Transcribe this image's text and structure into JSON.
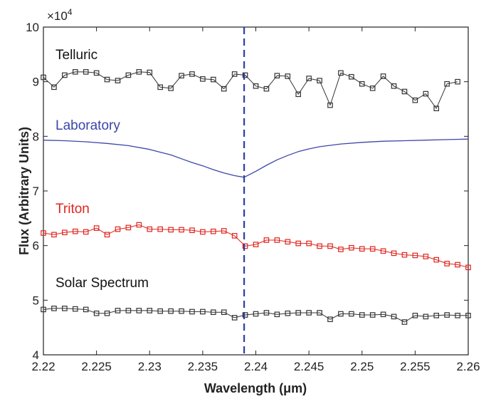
{
  "chart_data": {
    "type": "line",
    "xlabel": "Wavelength (μm)",
    "ylabel": "Flux (Arbitrary Units)",
    "y_multiplier_label": "×10",
    "y_multiplier_exponent": "4",
    "xlim": [
      2.22,
      2.26
    ],
    "ylim": [
      4,
      10
    ],
    "x_ticks": [
      "2.22",
      "2.225",
      "2.23",
      "2.235",
      "2.24",
      "2.245",
      "2.25",
      "2.255",
      "2.26"
    ],
    "y_ticks": [
      "4",
      "5",
      "6",
      "7",
      "8",
      "9",
      "10"
    ],
    "grid": false,
    "reference_line": {
      "x": 2.2389,
      "color": "#2b3fa8",
      "style": "dashed"
    },
    "annotations": [
      {
        "text": "Telluric",
        "color": "#111111"
      },
      {
        "text": "Laboratory",
        "color": "#3a46a8"
      },
      {
        "text": "Triton",
        "color": "#e0241c"
      },
      {
        "text": "Solar Spectrum",
        "color": "#111111"
      }
    ],
    "series": [
      {
        "name": "Telluric",
        "color": "#333333",
        "marker": "square",
        "x": [
          2.22,
          2.221,
          2.222,
          2.223,
          2.224,
          2.225,
          2.226,
          2.227,
          2.228,
          2.229,
          2.23,
          2.231,
          2.232,
          2.233,
          2.234,
          2.235,
          2.236,
          2.237,
          2.238,
          2.239,
          2.24,
          2.241,
          2.242,
          2.243,
          2.244,
          2.245,
          2.246,
          2.247,
          2.248,
          2.249,
          2.25,
          2.251,
          2.252,
          2.253,
          2.254,
          2.255,
          2.256,
          2.257,
          2.258,
          2.259
        ],
        "y": [
          9.08,
          8.9,
          9.12,
          9.18,
          9.18,
          9.16,
          9.04,
          9.02,
          9.12,
          9.18,
          9.17,
          8.9,
          8.88,
          9.11,
          9.14,
          9.05,
          9.04,
          8.87,
          9.14,
          9.12,
          8.92,
          8.87,
          9.11,
          9.1,
          8.77,
          9.06,
          9.02,
          8.57,
          9.16,
          9.09,
          8.96,
          8.88,
          9.1,
          8.92,
          8.82,
          8.66,
          8.78,
          8.51,
          8.96,
          9.0
        ]
      },
      {
        "name": "Laboratory",
        "color": "#3b47a8",
        "marker": "none",
        "x": [
          2.22,
          2.222,
          2.224,
          2.226,
          2.228,
          2.23,
          2.231,
          2.232,
          2.233,
          2.234,
          2.235,
          2.236,
          2.237,
          2.238,
          2.2389,
          2.24,
          2.241,
          2.242,
          2.243,
          2.244,
          2.245,
          2.246,
          2.248,
          2.25,
          2.252,
          2.254,
          2.256,
          2.258,
          2.26
        ],
        "y": [
          7.93,
          7.92,
          7.9,
          7.87,
          7.83,
          7.76,
          7.71,
          7.66,
          7.59,
          7.52,
          7.46,
          7.39,
          7.33,
          7.28,
          7.25,
          7.36,
          7.47,
          7.57,
          7.65,
          7.72,
          7.77,
          7.81,
          7.86,
          7.89,
          7.91,
          7.92,
          7.93,
          7.94,
          7.95
        ]
      },
      {
        "name": "Triton",
        "color": "#e0241c",
        "marker": "square",
        "x": [
          2.22,
          2.221,
          2.222,
          2.223,
          2.224,
          2.225,
          2.226,
          2.227,
          2.228,
          2.229,
          2.23,
          2.231,
          2.232,
          2.233,
          2.234,
          2.235,
          2.236,
          2.237,
          2.238,
          2.239,
          2.24,
          2.241,
          2.242,
          2.243,
          2.244,
          2.245,
          2.246,
          2.247,
          2.248,
          2.249,
          2.25,
          2.251,
          2.252,
          2.253,
          2.254,
          2.255,
          2.256,
          2.257,
          2.258,
          2.259,
          2.26
        ],
        "y": [
          6.23,
          6.2,
          6.24,
          6.26,
          6.25,
          6.32,
          6.2,
          6.3,
          6.33,
          6.38,
          6.3,
          6.3,
          6.29,
          6.29,
          6.28,
          6.25,
          6.26,
          6.27,
          6.18,
          5.99,
          6.02,
          6.1,
          6.1,
          6.07,
          6.04,
          6.04,
          5.99,
          5.99,
          5.93,
          5.96,
          5.94,
          5.94,
          5.9,
          5.86,
          5.83,
          5.82,
          5.8,
          5.74,
          5.67,
          5.65,
          5.6
        ]
      },
      {
        "name": "Solar Spectrum",
        "color": "#333333",
        "marker": "square",
        "x": [
          2.22,
          2.221,
          2.222,
          2.223,
          2.224,
          2.225,
          2.226,
          2.227,
          2.228,
          2.229,
          2.23,
          2.231,
          2.232,
          2.233,
          2.234,
          2.235,
          2.236,
          2.237,
          2.238,
          2.239,
          2.24,
          2.241,
          2.242,
          2.243,
          2.244,
          2.245,
          2.246,
          2.247,
          2.248,
          2.249,
          2.25,
          2.251,
          2.252,
          2.253,
          2.254,
          2.255,
          2.256,
          2.257,
          2.258,
          2.259,
          2.26
        ],
        "y": [
          4.83,
          4.85,
          4.85,
          4.84,
          4.83,
          4.76,
          4.76,
          4.81,
          4.81,
          4.81,
          4.81,
          4.8,
          4.8,
          4.8,
          4.79,
          4.79,
          4.78,
          4.78,
          4.68,
          4.73,
          4.75,
          4.77,
          4.74,
          4.76,
          4.77,
          4.77,
          4.77,
          4.65,
          4.75,
          4.75,
          4.73,
          4.73,
          4.74,
          4.7,
          4.6,
          4.72,
          4.7,
          4.72,
          4.73,
          4.72,
          4.72
        ]
      }
    ]
  }
}
